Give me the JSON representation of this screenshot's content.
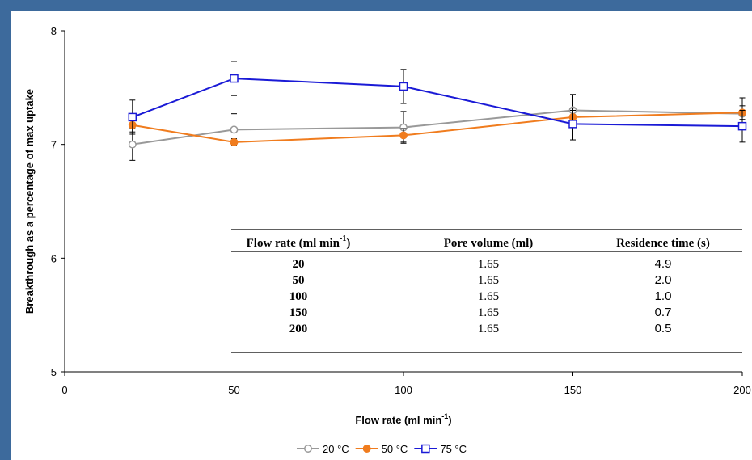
{
  "chart_data": {
    "type": "line",
    "xlabel": "Flow rate (ml min",
    "xlabel_sup": "-1",
    "xlabel_end": ")",
    "ylabel": "Breakthrough as a percentage of max uptake",
    "xlim": [
      0,
      200
    ],
    "ylim": [
      5,
      8
    ],
    "x_ticks": [
      "0",
      "50",
      "100",
      "150",
      "200"
    ],
    "y_ticks": [
      "5",
      "6",
      "7",
      "8"
    ],
    "legend_position": "bottom",
    "grid": false,
    "x": [
      20,
      50,
      100,
      150,
      200
    ],
    "series": [
      {
        "name": "20 °C",
        "color": "#999999",
        "marker": "open-circle",
        "values": [
          7.0,
          7.13,
          7.15,
          7.3,
          7.27
        ],
        "error": [
          0.14,
          0.14,
          0.14,
          0.14,
          0.14
        ]
      },
      {
        "name": "50 °C",
        "color": "#f07c1e",
        "marker": "filled-circle",
        "values": [
          7.17,
          7.02,
          7.08,
          7.24,
          7.28
        ],
        "error": [
          0.06,
          0.03,
          0.06,
          0.06,
          0.06
        ]
      },
      {
        "name": "75 °C",
        "color": "#1a1ad6",
        "marker": "open-square",
        "values": [
          7.24,
          7.58,
          7.51,
          7.18,
          7.16
        ],
        "error": [
          0.15,
          0.15,
          0.15,
          0.14,
          0.14
        ]
      }
    ]
  },
  "table": {
    "headers": [
      {
        "text": "Flow rate (ml min",
        "sup": "-1",
        "end": ")"
      },
      {
        "text": "Pore volume (ml)"
      },
      {
        "text": "Residence time (s)"
      }
    ],
    "rows": [
      [
        "20",
        "1.65",
        "4.9"
      ],
      [
        "50",
        "1.65",
        "2.0"
      ],
      [
        "100",
        "1.65",
        "1.0"
      ],
      [
        "150",
        "1.65",
        "0.7"
      ],
      [
        "200",
        "1.65",
        "0.5"
      ]
    ]
  }
}
